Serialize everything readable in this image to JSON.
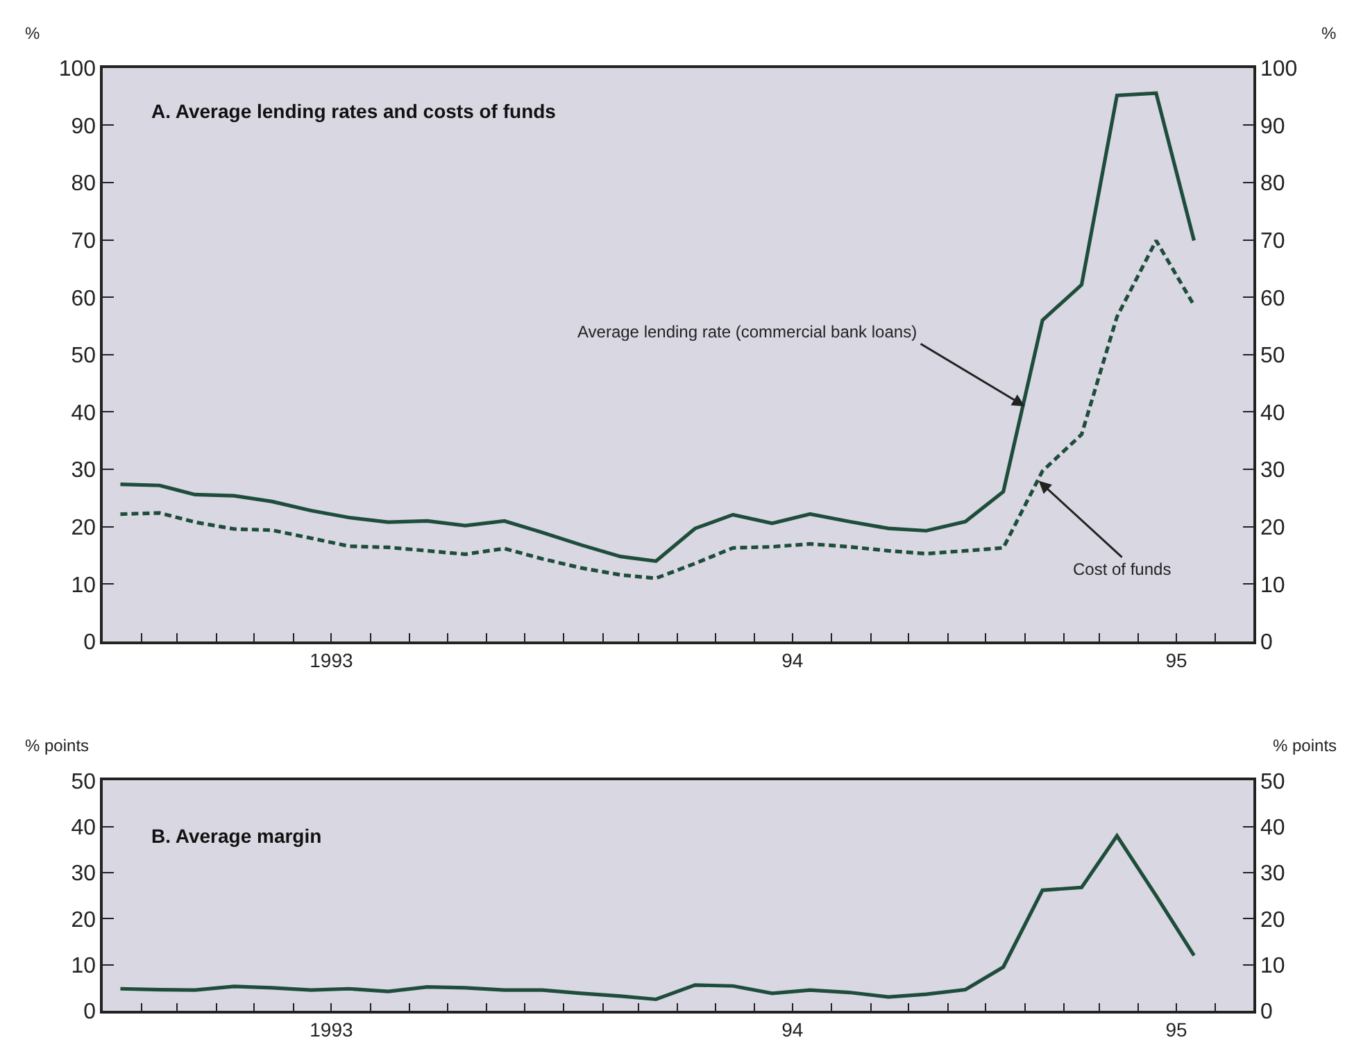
{
  "chart_data": [
    {
      "type": "line",
      "title": "A. Average lending rates and costs of funds",
      "ylabel": "%",
      "y2label": "%",
      "x": [
        "1993-01-15",
        "1993-02-15",
        "1993-03-15",
        "1993-04-15",
        "1993-05-15",
        "1993-06-15",
        "1993-07-15",
        "1993-08-15",
        "1993-09-15",
        "1993-10-15",
        "1993-11-15",
        "1993-12-15",
        "1994-01-15",
        "1994-02-15",
        "1994-03-15",
        "1994-04-15",
        "1994-05-15",
        "1994-06-15",
        "1994-07-15",
        "1994-08-15",
        "1994-09-15",
        "1994-10-15",
        "1994-11-15",
        "1994-12-15",
        "1995-01-15",
        "1995-02-15",
        "1995-03-15",
        "1995-04-15",
        "1995-05-15"
      ],
      "xlim": [
        "1993-01-01",
        "1995-07-01"
      ],
      "xticks": [
        {
          "value": "1993-02-01",
          "label": null
        },
        {
          "value": "1993-03-01",
          "label": null
        },
        {
          "value": "1993-04-01",
          "label": null
        },
        {
          "value": "1993-05-01",
          "label": null
        },
        {
          "value": "1993-06-01",
          "label": null
        },
        {
          "value": "1993-07-01",
          "label": "1993"
        },
        {
          "value": "1993-08-01",
          "label": null
        },
        {
          "value": "1993-09-01",
          "label": null
        },
        {
          "value": "1993-10-01",
          "label": null
        },
        {
          "value": "1993-11-01",
          "label": null
        },
        {
          "value": "1993-12-01",
          "label": null
        },
        {
          "value": "1994-01-01",
          "label": null
        },
        {
          "value": "1994-02-01",
          "label": null
        },
        {
          "value": "1994-03-01",
          "label": null
        },
        {
          "value": "1994-04-01",
          "label": null
        },
        {
          "value": "1994-05-01",
          "label": null
        },
        {
          "value": "1994-06-01",
          "label": null
        },
        {
          "value": "1994-07-01",
          "label": "94"
        },
        {
          "value": "1994-08-01",
          "label": null
        },
        {
          "value": "1994-09-01",
          "label": null
        },
        {
          "value": "1994-10-01",
          "label": null
        },
        {
          "value": "1994-11-01",
          "label": null
        },
        {
          "value": "1994-12-01",
          "label": null
        },
        {
          "value": "1995-01-01",
          "label": null
        },
        {
          "value": "1995-02-01",
          "label": null
        },
        {
          "value": "1995-03-01",
          "label": null
        },
        {
          "value": "1995-04-01",
          "label": null
        },
        {
          "value": "1995-05-01",
          "label": "95"
        },
        {
          "value": "1995-06-01",
          "label": null
        }
      ],
      "ylim": [
        0,
        100
      ],
      "yticks": [
        0,
        10,
        20,
        30,
        40,
        50,
        60,
        70,
        80,
        90,
        100
      ],
      "y2lim": [
        0,
        100
      ],
      "y2ticks": [
        0,
        10,
        20,
        30,
        40,
        50,
        60,
        70,
        80,
        90,
        100
      ],
      "series": [
        {
          "color": "#1e4d3b",
          "line_style": "solid",
          "values": [
            27.4,
            27.2,
            25.6,
            25.4,
            24.4,
            22.8,
            21.6,
            20.8,
            21.0,
            20.2,
            21.0,
            19.0,
            16.8,
            14.8,
            14.0,
            19.7,
            22.1,
            20.6,
            22.2,
            20.9,
            19.7,
            19.3,
            20.9,
            26.1,
            56.0,
            62.2,
            95.2,
            95.6,
            69.9
          ]
        },
        {
          "color": "#1e4d3b",
          "line_style": "dashed",
          "values": [
            22.2,
            22.4,
            20.8,
            19.6,
            19.4,
            18.0,
            16.6,
            16.4,
            15.8,
            15.2,
            16.2,
            14.4,
            12.8,
            11.6,
            11.0,
            13.6,
            16.3,
            16.5,
            17.0,
            16.5,
            15.8,
            15.3,
            15.8,
            16.3,
            29.7,
            36.1,
            56.6,
            69.9,
            58.6
          ]
        }
      ],
      "annotations": [
        {
          "text": "Average lending rate (commercial bank loans)",
          "x": "1995-01-01",
          "y": 41
        },
        {
          "text": "Cost of funds",
          "x": "1995-01-12",
          "y": 28
        }
      ]
    },
    {
      "type": "line",
      "title": "B. Average margin",
      "ylabel": "% points",
      "y2label": "% points",
      "x": [
        "1993-01-15",
        "1993-02-15",
        "1993-03-15",
        "1993-04-15",
        "1993-05-15",
        "1993-06-15",
        "1993-07-15",
        "1993-08-15",
        "1993-09-15",
        "1993-10-15",
        "1993-11-15",
        "1993-12-15",
        "1994-01-15",
        "1994-02-15",
        "1994-03-15",
        "1994-04-15",
        "1994-05-15",
        "1994-06-15",
        "1994-07-15",
        "1994-08-15",
        "1994-09-15",
        "1994-10-15",
        "1994-11-15",
        "1994-12-15",
        "1995-01-15",
        "1995-02-15",
        "1995-03-15",
        "1995-04-15",
        "1995-05-15"
      ],
      "xlim": [
        "1993-01-01",
        "1995-07-01"
      ],
      "xticks": [
        {
          "value": "1993-02-01",
          "label": null
        },
        {
          "value": "1993-03-01",
          "label": null
        },
        {
          "value": "1993-04-01",
          "label": null
        },
        {
          "value": "1993-05-01",
          "label": null
        },
        {
          "value": "1993-06-01",
          "label": null
        },
        {
          "value": "1993-07-01",
          "label": "1993"
        },
        {
          "value": "1993-08-01",
          "label": null
        },
        {
          "value": "1993-09-01",
          "label": null
        },
        {
          "value": "1993-10-01",
          "label": null
        },
        {
          "value": "1993-11-01",
          "label": null
        },
        {
          "value": "1993-12-01",
          "label": null
        },
        {
          "value": "1994-01-01",
          "label": null
        },
        {
          "value": "1994-02-01",
          "label": null
        },
        {
          "value": "1994-03-01",
          "label": null
        },
        {
          "value": "1994-04-01",
          "label": null
        },
        {
          "value": "1994-05-01",
          "label": null
        },
        {
          "value": "1994-06-01",
          "label": null
        },
        {
          "value": "1994-07-01",
          "label": "94"
        },
        {
          "value": "1994-08-01",
          "label": null
        },
        {
          "value": "1994-09-01",
          "label": null
        },
        {
          "value": "1994-10-01",
          "label": null
        },
        {
          "value": "1994-11-01",
          "label": null
        },
        {
          "value": "1994-12-01",
          "label": null
        },
        {
          "value": "1995-01-01",
          "label": null
        },
        {
          "value": "1995-02-01",
          "label": null
        },
        {
          "value": "1995-03-01",
          "label": null
        },
        {
          "value": "1995-04-01",
          "label": null
        },
        {
          "value": "1995-05-01",
          "label": "95"
        },
        {
          "value": "1995-06-01",
          "label": null
        }
      ],
      "ylim": [
        0,
        50
      ],
      "yticks": [
        0,
        10,
        20,
        30,
        40,
        50
      ],
      "y2lim": [
        0,
        50
      ],
      "y2ticks": [
        0,
        10,
        20,
        30,
        40,
        50
      ],
      "series": [
        {
          "color": "#1e4d3b",
          "line_style": "solid",
          "values": [
            4.8,
            4.6,
            4.5,
            5.3,
            5.0,
            4.5,
            4.8,
            4.2,
            5.2,
            5.0,
            4.5,
            4.5,
            3.8,
            3.2,
            2.5,
            5.6,
            5.4,
            3.8,
            4.5,
            4.0,
            3.0,
            3.6,
            4.6,
            9.5,
            26.2,
            26.8,
            38.0,
            25.0,
            12.0
          ]
        }
      ]
    }
  ]
}
